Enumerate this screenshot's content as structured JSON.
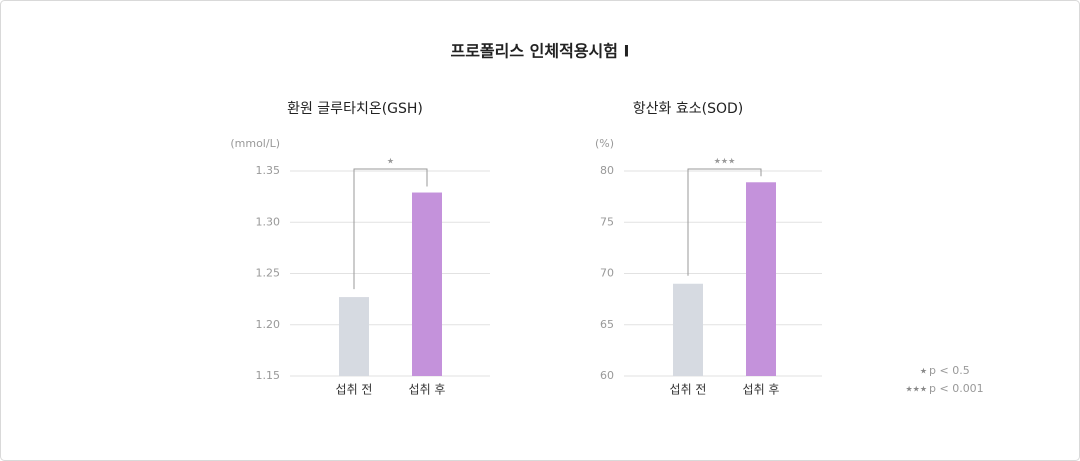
{
  "title": "프로폴리스 인체적용시험 I",
  "chart_data": [
    {
      "type": "bar",
      "title": "환원 글루타치온(GSH)",
      "unit": "(mmol/L)",
      "categories": [
        "섭취 전",
        "섭취 후"
      ],
      "values": [
        1.227,
        1.329
      ],
      "colors": [
        "#d6dae1",
        "#c492db"
      ],
      "ylim": [
        1.15,
        1.35
      ],
      "yticks": [
        1.15,
        {
          "value": 1.2,
          "label": "1.20"
        },
        1.25,
        {
          "value": 1.3,
          "label": "1.30"
        },
        1.35
      ],
      "grid": true,
      "significance": "★"
    },
    {
      "type": "bar",
      "title": "항산화 효소(SOD)",
      "unit": "(%)",
      "categories": [
        "섭취 전",
        "섭취 후"
      ],
      "values": [
        69,
        78.9
      ],
      "colors": [
        "#d6dae1",
        "#c492db"
      ],
      "ylim": [
        60,
        80
      ],
      "yticks": [
        60,
        65,
        70,
        75,
        80
      ],
      "grid": true,
      "significance": "★★★"
    }
  ],
  "notes": [
    {
      "symbol": "★",
      "text": "p < 0.5"
    },
    {
      "symbol": "★★★",
      "text": "p < 0.001"
    }
  ]
}
